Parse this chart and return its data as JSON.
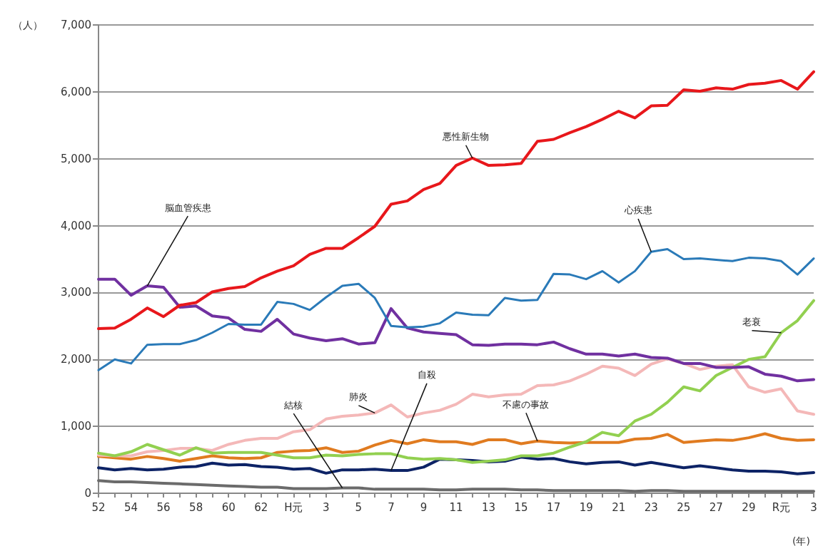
{
  "chart_data": {
    "type": "line",
    "ylabel": "（人）",
    "xlabel": "(年)",
    "categories": [
      "52",
      null,
      "54",
      null,
      "56",
      null,
      "58",
      null,
      "60",
      null,
      "62",
      null,
      "H元",
      null,
      "3",
      null,
      "5",
      null,
      "7",
      null,
      "9",
      null,
      "11",
      null,
      "13",
      null,
      "15",
      null,
      "17",
      null,
      "19",
      null,
      "21",
      null,
      "23",
      null,
      "25",
      null,
      "27",
      null,
      "29",
      null,
      "R元",
      null,
      "3"
    ],
    "ylim": [
      0,
      7000
    ],
    "yticks": [
      {
        "value": 0,
        "label": "0"
      },
      {
        "value": 1000,
        "label": "1,000"
      },
      {
        "value": 2000,
        "label": "2,000"
      },
      {
        "value": 3000,
        "label": "3,000"
      },
      {
        "value": 4000,
        "label": "4,000"
      },
      {
        "value": 5000,
        "label": "5,000"
      },
      {
        "value": 6000,
        "label": "6,000"
      },
      {
        "value": 7000,
        "label": "7,000"
      }
    ],
    "grid": "y",
    "legend": false,
    "marker": "none",
    "line_style": "solid",
    "series": [
      {
        "name": "悪性新生物",
        "color": "#e8171b",
        "values": [
          2460,
          2470,
          2600,
          2770,
          2640,
          2810,
          2850,
          3010,
          3060,
          3090,
          3220,
          3320,
          3400,
          3570,
          3660,
          3660,
          3820,
          3990,
          4320,
          4370,
          4540,
          4630,
          4900,
          5010,
          4900,
          4910,
          4930,
          5260,
          5290,
          5390,
          5480,
          5590,
          5710,
          5610,
          5790,
          5800,
          6030,
          6010,
          6060,
          6040,
          6110,
          6130,
          6170,
          6040,
          6300
        ]
      },
      {
        "name": "心疾患",
        "color": "#2a7ab8",
        "values": [
          1840,
          2000,
          1940,
          2220,
          2230,
          2230,
          2290,
          2400,
          2530,
          2520,
          2520,
          2860,
          2830,
          2740,
          2930,
          3100,
          3130,
          2920,
          2500,
          2480,
          2490,
          2540,
          2700,
          2670,
          2660,
          2920,
          2880,
          2890,
          3280,
          3270,
          3200,
          3320,
          3150,
          3320,
          3610,
          3650,
          3500,
          3510,
          3490,
          3470,
          3520,
          3510,
          3470,
          3270,
          3510
        ]
      },
      {
        "name": "脳血管疾患",
        "color": "#7030a0",
        "values": [
          3200,
          3200,
          2960,
          3100,
          3080,
          2780,
          2800,
          2650,
          2620,
          2450,
          2420,
          2600,
          2380,
          2320,
          2280,
          2310,
          2230,
          2250,
          2760,
          2470,
          2410,
          2390,
          2370,
          2220,
          2210,
          2230,
          2230,
          2220,
          2260,
          2160,
          2080,
          2080,
          2050,
          2080,
          2030,
          2020,
          1940,
          1940,
          1880,
          1880,
          1890,
          1780,
          1750,
          1680,
          1700
        ]
      },
      {
        "name": "老衰",
        "color": "#92d050",
        "values": [
          600,
          560,
          620,
          730,
          650,
          570,
          680,
          600,
          610,
          610,
          610,
          570,
          530,
          530,
          570,
          560,
          580,
          590,
          590,
          530,
          510,
          520,
          500,
          460,
          480,
          500,
          560,
          560,
          600,
          690,
          770,
          910,
          860,
          1080,
          1180,
          1360,
          1590,
          1530,
          1760,
          1880,
          2000,
          2040,
          2400,
          2580,
          2880
        ]
      },
      {
        "name": "肺炎",
        "color": "#f4b8b8",
        "values": [
          570,
          560,
          560,
          620,
          640,
          670,
          670,
          640,
          730,
          790,
          820,
          820,
          920,
          950,
          1110,
          1150,
          1170,
          1200,
          1320,
          1140,
          1200,
          1240,
          1330,
          1480,
          1440,
          1470,
          1480,
          1610,
          1620,
          1680,
          1780,
          1900,
          1870,
          1760,
          1930,
          2010,
          1940,
          1850,
          1900,
          1920,
          1590,
          1510,
          1560,
          1230,
          1180
        ]
      },
      {
        "name": "不慮の事故",
        "color": "#e07b20",
        "values": [
          550,
          530,
          510,
          550,
          520,
          480,
          520,
          560,
          530,
          520,
          530,
          610,
          630,
          640,
          680,
          610,
          630,
          720,
          790,
          740,
          800,
          770,
          770,
          730,
          800,
          800,
          740,
          780,
          760,
          750,
          760,
          760,
          760,
          810,
          820,
          880,
          760,
          780,
          800,
          790,
          830,
          890,
          820,
          790,
          800
        ]
      },
      {
        "name": "自殺",
        "color": "#0d2366",
        "values": [
          380,
          350,
          370,
          350,
          360,
          390,
          400,
          450,
          420,
          430,
          400,
          390,
          360,
          370,
          300,
          350,
          350,
          360,
          340,
          340,
          390,
          510,
          500,
          490,
          470,
          480,
          540,
          510,
          520,
          470,
          440,
          460,
          470,
          420,
          460,
          420,
          380,
          410,
          380,
          350,
          330,
          330,
          320,
          290,
          310
        ]
      },
      {
        "name": "結核",
        "color": "#6b6b6b",
        "values": [
          190,
          170,
          170,
          160,
          150,
          140,
          130,
          120,
          110,
          100,
          90,
          90,
          70,
          70,
          70,
          80,
          80,
          60,
          60,
          60,
          60,
          50,
          50,
          60,
          60,
          60,
          50,
          50,
          40,
          40,
          40,
          40,
          40,
          30,
          40,
          40,
          30,
          30,
          30,
          30,
          30,
          30,
          30,
          30,
          30
        ]
      }
    ]
  }
}
